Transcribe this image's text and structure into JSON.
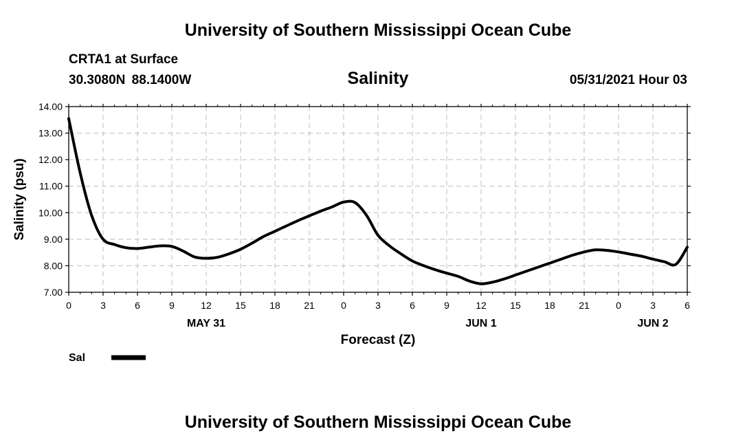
{
  "header": {
    "title": "University of Southern Mississippi Ocean Cube",
    "station": "CRTA1 at Surface",
    "coordinates": "30.3080N  88.1400W",
    "chart_title": "Salinity",
    "datetime": "05/31/2021 Hour 03"
  },
  "footer": {
    "title": "University of Southern Mississippi Ocean Cube"
  },
  "chart_data": {
    "type": "line",
    "title": "Salinity",
    "xlabel": "Forecast (Z)",
    "ylabel": "Salinity (psu)",
    "ylim": [
      7.0,
      14.0
    ],
    "yticks": [
      "7.00",
      "8.00",
      "9.00",
      "10.00",
      "11.00",
      "12.00",
      "13.00",
      "14.00"
    ],
    "xlim": [
      0,
      54
    ],
    "xtick_labels": [
      "0",
      "3",
      "6",
      "9",
      "12",
      "15",
      "18",
      "21",
      "0",
      "3",
      "6",
      "9",
      "12",
      "15",
      "18",
      "21",
      "0",
      "3",
      "6"
    ],
    "day_labels": [
      {
        "label": "MAY 31",
        "x": 12
      },
      {
        "label": "JUN 1",
        "x": 36
      },
      {
        "label": "JUN 2",
        "x": 51
      }
    ],
    "grid": true,
    "legend": "bottom-left",
    "line_color": "#000000",
    "series": [
      {
        "name": "Sal",
        "x": [
          0,
          1,
          2,
          3,
          4,
          5,
          6,
          7,
          8,
          9,
          10,
          11,
          12,
          13,
          14,
          15,
          16,
          17,
          18,
          19,
          20,
          21,
          22,
          23,
          24,
          25,
          26,
          27,
          28,
          29,
          30,
          31,
          32,
          33,
          34,
          35,
          36,
          37,
          38,
          39,
          40,
          41,
          42,
          43,
          44,
          45,
          46,
          47,
          48,
          49,
          50,
          51,
          52,
          53,
          54
        ],
        "values": [
          13.55,
          11.5,
          9.9,
          9.0,
          8.8,
          8.68,
          8.65,
          8.7,
          8.75,
          8.73,
          8.55,
          8.33,
          8.28,
          8.32,
          8.45,
          8.62,
          8.85,
          9.1,
          9.3,
          9.5,
          9.7,
          9.88,
          10.06,
          10.22,
          10.4,
          10.38,
          9.9,
          9.15,
          8.75,
          8.45,
          8.18,
          8.0,
          7.85,
          7.72,
          7.6,
          7.42,
          7.32,
          7.38,
          7.5,
          7.65,
          7.8,
          7.95,
          8.1,
          8.25,
          8.4,
          8.52,
          8.6,
          8.58,
          8.52,
          8.44,
          8.36,
          8.25,
          8.15,
          8.05,
          8.7
        ]
      }
    ]
  }
}
